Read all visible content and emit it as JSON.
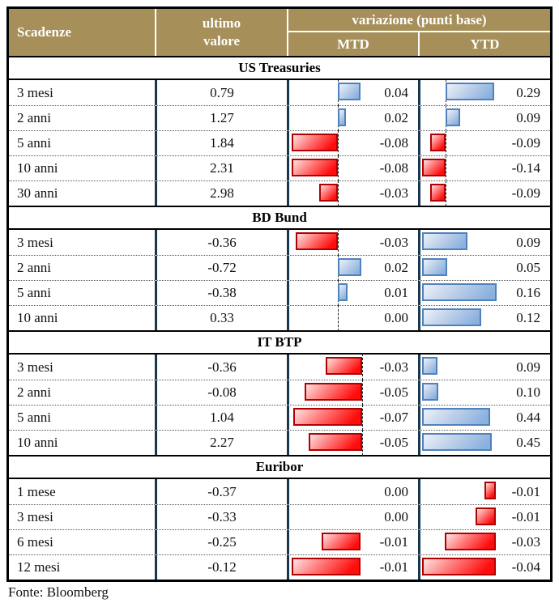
{
  "header": {
    "maturity_col": "Scadenze",
    "value_col_line1": "ultimo",
    "value_col_line2": "valore",
    "variation_group": "variazione (punti base)",
    "mtd_col": "MTD",
    "ytd_col": "YTD"
  },
  "source": "Fonte: Bloomberg",
  "colors": {
    "header_bg": "#a68f58",
    "header_text": "#ffffff",
    "column_divider": "#17384e",
    "positive_bar_border": "#4f81bd",
    "negative_bar_border": "#b00000",
    "positive_bar_fill": "#8ab0de",
    "negative_bar_fill": "#ff0d0d"
  },
  "chart_data": {
    "type": "table",
    "title": "Scadenze / ultimo valore / variazione (punti base) MTD YTD",
    "bar_semantics": "positive variations drawn as blue bars right of dashed baseline, negative variations as red bars left of baseline; each section-column chart has its own scale",
    "sections": [
      {
        "title": "US Treasuries",
        "mtd_axis": {
          "baseline_frac": 0.62,
          "show_axis": true
        },
        "ytd_axis": {
          "baseline_frac": 0.31,
          "show_axis": true
        },
        "rows": [
          {
            "label": "3 mesi",
            "value": "0.79",
            "mtd": {
              "value": "0.04",
              "bar_frac": 0.3
            },
            "ytd": {
              "value": "0.29",
              "bar_frac": 0.65
            }
          },
          {
            "label": "2 anni",
            "value": "1.27",
            "mtd": {
              "value": "0.02",
              "bar_frac": 0.11
            },
            "ytd": {
              "value": "0.09",
              "bar_frac": 0.2
            }
          },
          {
            "label": "5 anni",
            "value": "1.84",
            "mtd": {
              "value": "-0.08",
              "bar_frac": 0.61
            },
            "ytd": {
              "value": "-0.09",
              "bar_frac": 0.2
            }
          },
          {
            "label": "10 anni",
            "value": "2.31",
            "mtd": {
              "value": "-0.08",
              "bar_frac": 0.61
            },
            "ytd": {
              "value": "-0.14",
              "bar_frac": 0.31
            }
          },
          {
            "label": "30 anni",
            "value": "2.98",
            "mtd": {
              "value": "-0.03",
              "bar_frac": 0.24
            },
            "ytd": {
              "value": "-0.09",
              "bar_frac": 0.2
            }
          }
        ]
      },
      {
        "title": "BD Bund",
        "mtd_axis": {
          "baseline_frac": 0.62,
          "show_axis": true
        },
        "ytd_axis": {
          "baseline_frac": 0.0,
          "show_axis": false
        },
        "rows": [
          {
            "label": "3 mesi",
            "value": "-0.36",
            "mtd": {
              "value": "-0.03",
              "bar_frac": 0.56
            },
            "ytd": {
              "value": "0.09",
              "bar_frac": 0.6
            }
          },
          {
            "label": "2 anni",
            "value": "-0.72",
            "mtd": {
              "value": "0.02",
              "bar_frac": 0.32
            },
            "ytd": {
              "value": "0.05",
              "bar_frac": 0.33
            }
          },
          {
            "label": "5 anni",
            "value": "-0.38",
            "mtd": {
              "value": "0.01",
              "bar_frac": 0.13
            },
            "ytd": {
              "value": "0.16",
              "bar_frac": 0.99
            }
          },
          {
            "label": "10 anni",
            "value": "0.33",
            "mtd": {
              "value": "0.00",
              "bar_frac": 0.0
            },
            "ytd": {
              "value": "0.12",
              "bar_frac": 0.78
            }
          }
        ]
      },
      {
        "title": "IT BTP",
        "mtd_axis": {
          "baseline_frac": 0.95,
          "show_axis": true
        },
        "ytd_axis": {
          "baseline_frac": 0.0,
          "show_axis": false
        },
        "rows": [
          {
            "label": "3 mesi",
            "value": "-0.36",
            "mtd": {
              "value": "-0.03",
              "bar_frac": 0.49
            },
            "ytd": {
              "value": "0.09",
              "bar_frac": 0.2
            }
          },
          {
            "label": "2 anni",
            "value": "-0.08",
            "mtd": {
              "value": "-0.05",
              "bar_frac": 0.77
            },
            "ytd": {
              "value": "0.10",
              "bar_frac": 0.21
            }
          },
          {
            "label": "5 anni",
            "value": "1.04",
            "mtd": {
              "value": "-0.07",
              "bar_frac": 0.92
            },
            "ytd": {
              "value": "0.44",
              "bar_frac": 0.9
            }
          },
          {
            "label": "10 anni",
            "value": "2.27",
            "mtd": {
              "value": "-0.05",
              "bar_frac": 0.71
            },
            "ytd": {
              "value": "0.45",
              "bar_frac": 0.93
            }
          }
        ]
      },
      {
        "title": "Euribor",
        "mtd_axis": {
          "baseline_frac": 0.93,
          "show_axis": false
        },
        "ytd_axis": {
          "baseline_frac": 0.98,
          "show_axis": false
        },
        "rows": [
          {
            "label": "1 mese",
            "value": "-0.37",
            "mtd": {
              "value": "0.00",
              "bar_frac": 0.0
            },
            "ytd": {
              "value": "-0.01",
              "bar_frac": 0.15
            }
          },
          {
            "label": "3 mesi",
            "value": "-0.33",
            "mtd": {
              "value": "0.00",
              "bar_frac": 0.0
            },
            "ytd": {
              "value": "-0.01",
              "bar_frac": 0.27
            }
          },
          {
            "label": "6 mesi",
            "value": "-0.25",
            "mtd": {
              "value": "-0.01",
              "bar_frac": 0.52
            },
            "ytd": {
              "value": "-0.03",
              "bar_frac": 0.68
            }
          },
          {
            "label": "12 mesi",
            "value": "-0.12",
            "mtd": {
              "value": "-0.01",
              "bar_frac": 0.92
            },
            "ytd": {
              "value": "-0.04",
              "bar_frac": 0.98
            }
          }
        ]
      }
    ]
  }
}
